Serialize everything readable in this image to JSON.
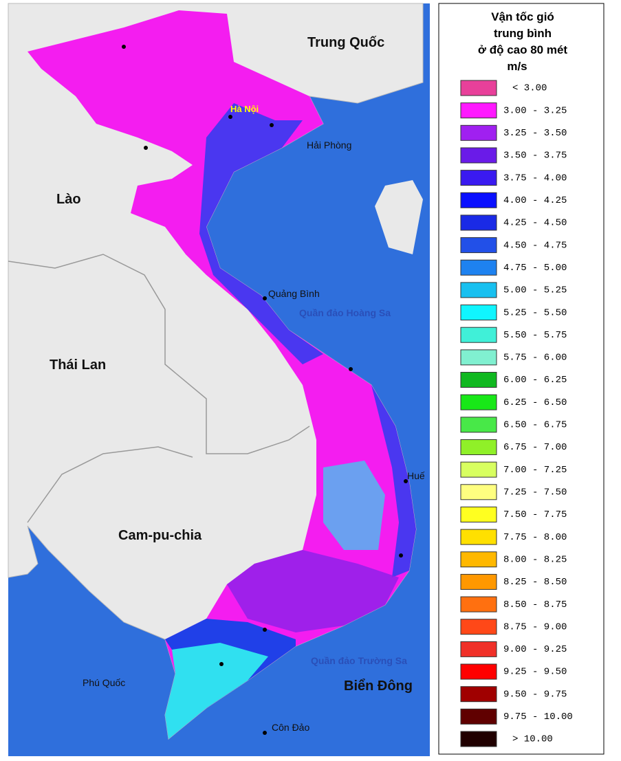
{
  "map": {
    "labels": [
      "Trung Quốc",
      "Hà Nội",
      "Hải Phòng",
      "Lào",
      "Quảng Bình",
      "Quần đảo Hoàng Sa",
      "Thái Lan",
      "Huế",
      "Cam-pu-chia",
      "Quần đảo Trường Sa",
      "Phú Quốc",
      "Biển Đông",
      "Côn Đảo"
    ]
  },
  "legend": {
    "title": [
      "Vận tốc gió",
      "trung bình",
      "ở độ cao 80 mét"
    ],
    "unit": "m/s",
    "items": [
      {
        "label": "< 3.00",
        "color": "#e8409a"
      },
      {
        "label": "3.00 - 3.25",
        "color": "#ff19ff"
      },
      {
        "label": "3.25 - 3.50",
        "color": "#a020f0"
      },
      {
        "label": "3.50 - 3.75",
        "color": "#6a1be8"
      },
      {
        "label": "3.75 - 4.00",
        "color": "#3a1af0"
      },
      {
        "label": "4.00 - 4.25",
        "color": "#0a10ff"
      },
      {
        "label": "4.25 - 4.50",
        "color": "#1a2ae6"
      },
      {
        "label": "4.50 - 4.75",
        "color": "#2250e8"
      },
      {
        "label": "4.75 - 5.00",
        "color": "#1e82f0"
      },
      {
        "label": "5.00 - 5.25",
        "color": "#18c0f0"
      },
      {
        "label": "5.25 - 5.50",
        "color": "#10f5ff"
      },
      {
        "label": "5.50 - 5.75",
        "color": "#40f0d8"
      },
      {
        "label": "5.75 - 6.00",
        "color": "#80f0d0"
      },
      {
        "label": "6.00 - 6.25",
        "color": "#10b820"
      },
      {
        "label": "6.25 - 6.50",
        "color": "#18e818"
      },
      {
        "label": "6.50 - 6.75",
        "color": "#48e848"
      },
      {
        "label": "6.75 - 7.00",
        "color": "#90f028"
      },
      {
        "label": "7.00 - 7.25",
        "color": "#d8ff60"
      },
      {
        "label": "7.25 - 7.50",
        "color": "#ffff80"
      },
      {
        "label": "7.50 - 7.75",
        "color": "#ffff20"
      },
      {
        "label": "7.75 - 8.00",
        "color": "#ffe000"
      },
      {
        "label": "8.00 - 8.25",
        "color": "#ffb800"
      },
      {
        "label": "8.25 - 8.50",
        "color": "#ff9800"
      },
      {
        "label": "8.50 - 8.75",
        "color": "#ff7010"
      },
      {
        "label": "8.75 - 9.00",
        "color": "#ff4818"
      },
      {
        "label": "9.00 - 9.25",
        "color": "#f03028"
      },
      {
        "label": "9.25 - 9.50",
        "color": "#ff0000"
      },
      {
        "label": "9.50 - 9.75",
        "color": "#a00000"
      },
      {
        "label": "9.75 - 10.00",
        "color": "#600000"
      },
      {
        "label": "> 10.00",
        "color": "#200000"
      }
    ]
  }
}
